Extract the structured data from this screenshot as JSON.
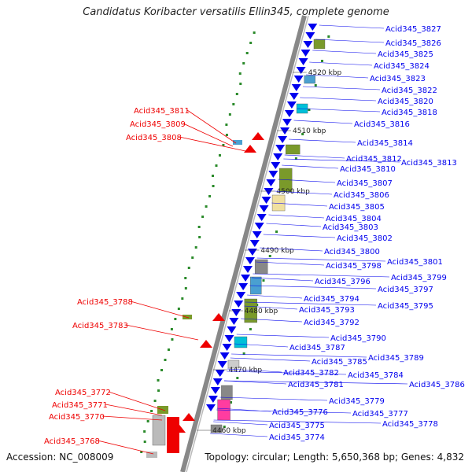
{
  "title": "Candidatus Koribacter versatilis Ellin345, complete genome",
  "footer": {
    "accession": "Accession: NC_008009",
    "stats": "Topology: circular; Length: 5,650,368 bp; Genes: 4,832"
  },
  "colors": {
    "forward": "#0000ee",
    "reverse": "#ee0000",
    "backbone": "#888888"
  },
  "ticks": [
    "4520 kbp",
    "4510 kbp",
    "4500 kbp",
    "4490 kbp",
    "4480 kbp",
    "4470 kbp",
    "4460 kbp"
  ],
  "left_labels": [
    "Acid345_3811",
    "Acid345_3809",
    "Acid345_3808",
    "Acid345_3788",
    "Acid345_3783",
    "Acid345_3772",
    "Acid345_3771",
    "Acid345_3770",
    "Acid345_3768"
  ],
  "right_labels": [
    "Acid345_3827",
    "Acid345_3826",
    "Acid345_3825",
    "Acid345_3824",
    "Acid345_3823",
    "Acid345_3822",
    "Acid345_3820",
    "Acid345_3818",
    "Acid345_3816",
    "Acid345_3814",
    "Acid345_3812",
    "Acid345_3813",
    "Acid345_3810",
    "Acid345_3807",
    "Acid345_3806",
    "Acid345_3805",
    "Acid345_3804",
    "Acid345_3803",
    "Acid345_3802",
    "Acid345_3800",
    "Acid345_3801",
    "Acid345_3798",
    "Acid345_3799",
    "Acid345_3796",
    "Acid345_3797",
    "Acid345_3794",
    "Acid345_3795",
    "Acid345_3793",
    "Acid345_3792",
    "Acid345_3790",
    "Acid345_3787",
    "Acid345_3789",
    "Acid345_3785",
    "Acid345_3784",
    "Acid345_3782",
    "Acid345_3786",
    "Acid345_3781",
    "Acid345_3779",
    "Acid345_3777",
    "Acid345_3776",
    "Acid345_3778",
    "Acid345_3775",
    "Acid345_3774"
  ]
}
